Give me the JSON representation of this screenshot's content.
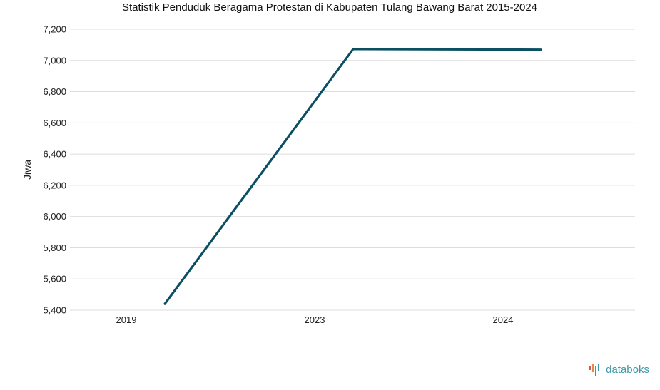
{
  "chart_data": {
    "type": "line",
    "title": "Statistik Penduduk Beragama Protestan di Kabupaten Tulang Bawang Barat 2015-2024",
    "xlabel": "",
    "ylabel": "Jiwa",
    "categories": [
      "2019",
      "2023",
      "2024"
    ],
    "series": [
      {
        "values": [
          5440,
          7073,
          7069
        ]
      }
    ],
    "ylim": [
      5400,
      7200
    ],
    "yticks": [
      5400,
      5600,
      5800,
      6000,
      6200,
      6400,
      6600,
      6800,
      7000,
      7200
    ],
    "ytick_labels": [
      "5,400",
      "5,600",
      "5,800",
      "6,000",
      "6,200",
      "6,400",
      "6,600",
      "6,800",
      "7,000",
      "7,200"
    ],
    "grid": true,
    "legend": "none",
    "colors": {
      "series": "#0b4f63",
      "grid": "#dddddd",
      "brand": "#3f9aa6"
    }
  },
  "branding": {
    "logo_text": "databoks",
    "logo_icon": "databoks-bars-icon"
  }
}
